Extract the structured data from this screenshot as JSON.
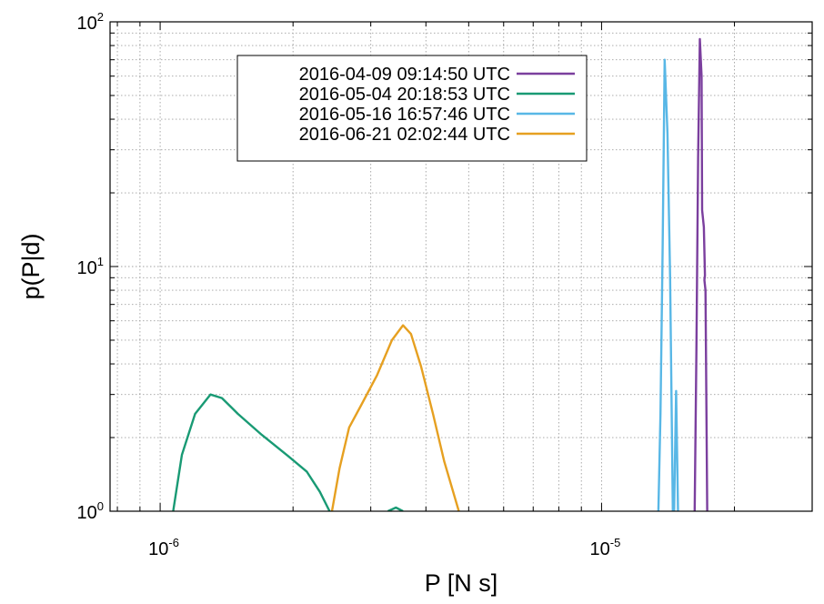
{
  "chart_data": {
    "type": "line",
    "xlabel": "P [N s]",
    "ylabel": "p(P|d)",
    "xscale": "log",
    "yscale": "log",
    "xlim": [
      7.7e-07,
      3e-05
    ],
    "ylim": [
      1,
      100
    ],
    "grid": true,
    "legend_position": "top-center",
    "x_ticks": [
      {
        "value": 1e-06,
        "base": "10",
        "exp": "-6"
      },
      {
        "value": 1e-05,
        "base": "10",
        "exp": "-5"
      }
    ],
    "y_ticks": [
      {
        "value": 1,
        "base": "10",
        "exp": "0"
      },
      {
        "value": 10,
        "base": "10",
        "exp": "1"
      },
      {
        "value": 100,
        "base": "10",
        "exp": "2"
      }
    ],
    "series": [
      {
        "name": "2016-04-09 09:14:50 UTC",
        "color": "#7b3f9e",
        "points": [
          [
            1.625e-05,
            1.0
          ],
          [
            1.64e-05,
            4.5
          ],
          [
            1.655e-05,
            28
          ],
          [
            1.67e-05,
            85
          ],
          [
            1.685e-05,
            60
          ],
          [
            1.69e-05,
            17
          ],
          [
            1.705e-05,
            14.5
          ],
          [
            1.715e-05,
            9.2
          ],
          [
            1.71e-05,
            8.8
          ],
          [
            1.72e-05,
            8.0
          ],
          [
            1.735e-05,
            1.0
          ]
        ]
      },
      {
        "name": "2016-05-04 20:18:53 UTC",
        "color": "#199a74",
        "points": [
          [
            1.07e-06,
            1.0
          ],
          [
            1.12e-06,
            1.7
          ],
          [
            1.2e-06,
            2.5
          ],
          [
            1.3e-06,
            3.0
          ],
          [
            1.38e-06,
            2.9
          ],
          [
            1.5e-06,
            2.5
          ],
          [
            1.7e-06,
            2.05
          ],
          [
            1.95e-06,
            1.68
          ],
          [
            2.15e-06,
            1.45
          ],
          [
            2.3e-06,
            1.2
          ],
          [
            2.42e-06,
            1.0
          ]
        ]
      },
      {
        "name": "2016-05-16 16:57:46 UTC",
        "color": "#58b7e6",
        "points": [
          [
            1.345e-05,
            1.0
          ],
          [
            1.36e-05,
            2.5
          ],
          [
            1.375e-05,
            12
          ],
          [
            1.39e-05,
            70
          ],
          [
            1.41e-05,
            35
          ],
          [
            1.43e-05,
            9.0
          ],
          [
            1.45e-05,
            1.0
          ],
          [
            1.46e-05,
            1.0
          ],
          [
            1.475e-05,
            3.1
          ],
          [
            1.49e-05,
            1.0
          ]
        ]
      },
      {
        "name": "2016-06-21 02:02:44 UTC",
        "color": "#e6a021",
        "points": [
          [
            2.45e-06,
            1.0
          ],
          [
            2.55e-06,
            1.5
          ],
          [
            2.68e-06,
            2.2
          ],
          [
            2.85e-06,
            2.7
          ],
          [
            3.1e-06,
            3.6
          ],
          [
            3.35e-06,
            5.0
          ],
          [
            3.55e-06,
            5.75
          ],
          [
            3.7e-06,
            5.3
          ],
          [
            3.9e-06,
            3.9
          ],
          [
            4.15e-06,
            2.5
          ],
          [
            4.4e-06,
            1.6
          ],
          [
            4.75e-06,
            1.0
          ]
        ]
      },
      {
        "name": "",
        "color": "#199a74",
        "points": [
          [
            3.28e-06,
            1.0
          ],
          [
            3.42e-06,
            1.035
          ],
          [
            3.55e-06,
            1.0
          ]
        ]
      }
    ]
  }
}
